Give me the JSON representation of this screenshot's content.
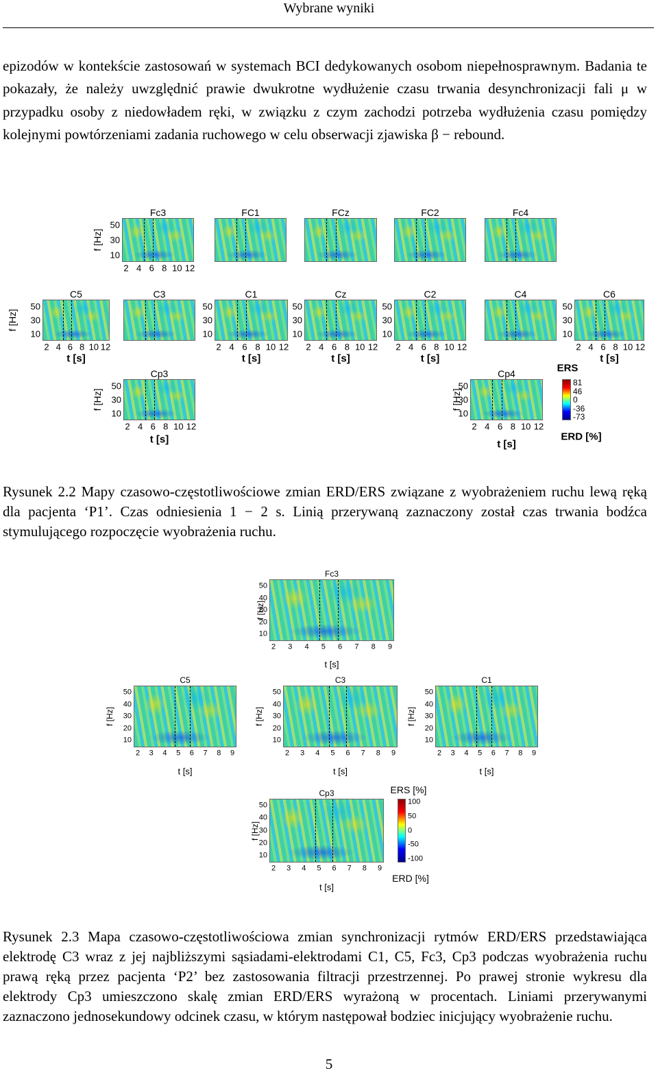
{
  "header": {
    "title": "Wybrane wyniki"
  },
  "paragraph": "epizodów w kontekście zastosowań w systemach BCI dedykowanych osobom niepełnosprawnym. Badania te pokazały, że należy uwzględnić prawie dwukrotne wydłużenie czasu trwania desynchronizacji fali μ w przypadku osoby z niedowładem ręki, w związku z czym zachodzi potrzeba wydłużenia czasu pomiędzy kolejnymi powtórzeniami zadania ruchowego w celu obserwacji zjawiska β − rebound.",
  "figure1": {
    "panels": [
      "Fc3",
      "FC1",
      "FCz",
      "FC2",
      "Fc4",
      "C5",
      "C3",
      "C1",
      "Cz",
      "C2",
      "C4",
      "C6",
      "Cp3",
      "Cp4"
    ],
    "yticks": [
      50,
      30,
      10
    ],
    "xticks": [
      2,
      4,
      6,
      8,
      10,
      12
    ],
    "ylabel": "f [Hz]",
    "xlabel": "t [s]",
    "colorbar": {
      "top": "ERS",
      "ticks": [
        81,
        46,
        0,
        -36,
        -73
      ],
      "bottom": "ERD [%]"
    },
    "caption": "Rysunek 2.2 Mapy czasowo-częstotliwościowe zmian ERD/ERS związane z wyobrażeniem ruchu lewą ręką dla pacjenta ‘P1’. Czas odniesienia 1 − 2 s. Linią przerywaną zaznaczony został czas trwania bodźca stymulującego rozpoczęcie wyobrażenia ruchu."
  },
  "figure2": {
    "panels": [
      "Fc3",
      "C5",
      "C3",
      "C1",
      "Cp3"
    ],
    "yticks": [
      50,
      40,
      30,
      20,
      10
    ],
    "xticks": [
      2,
      3,
      4,
      5,
      6,
      7,
      8,
      9
    ],
    "ylabel": "f [Hz]",
    "xlabel": "t [s]",
    "colorbar": {
      "top": "ERS [%]",
      "ticks": [
        100,
        50,
        0,
        -50,
        -100
      ],
      "bottom": "ERD [%]"
    },
    "caption": "Rysunek 2.3 Mapa czasowo-częstotliwościowa zmian synchronizacji rytmów ERD/ERS przedstawiająca elektrodę C3 wraz z jej najbliższymi sąsiadami-elektrodami C1, C5, Fc3, Cp3 podczas wyobrażenia ruchu prawą ręką przez pacjenta ‘P2’ bez zastosowania filtracji przestrzennej. Po prawej stronie wykresu dla elektrody Cp3 umieszczono skalę zmian ERD/ERS wyrażoną w procentach. Liniami przerywanymi zaznaczono jednosekundowy odcinek czasu, w którym następował bodziec inicjujący wyobrażenie ruchu."
  },
  "footer": {
    "page": 5
  }
}
